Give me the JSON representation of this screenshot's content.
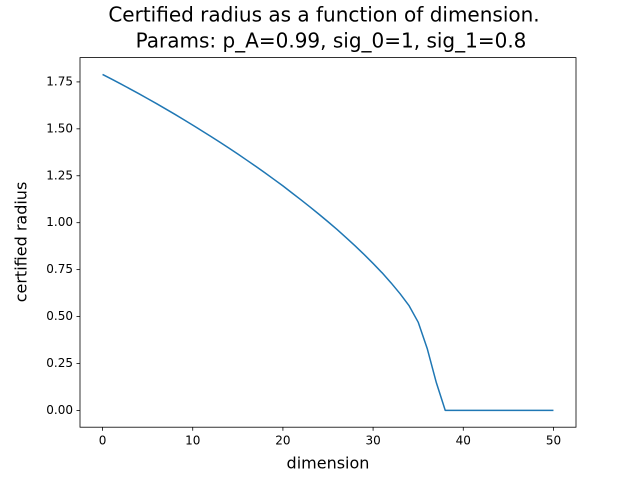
{
  "chart_data": {
    "type": "line",
    "title": "Certified radius as a function of dimension.",
    "subtitle": "Params: p_A=0.99, sig_0=1, sig_1=0.8",
    "xlabel": "dimension",
    "ylabel": "certified radius",
    "x": [
      0,
      1,
      2,
      3,
      4,
      5,
      6,
      7,
      8,
      9,
      10,
      11,
      12,
      13,
      14,
      15,
      16,
      17,
      18,
      19,
      20,
      21,
      22,
      23,
      24,
      25,
      26,
      27,
      28,
      29,
      30,
      31,
      32,
      33,
      34,
      35,
      36,
      37,
      38,
      39,
      40,
      41,
      42,
      43,
      44,
      45,
      46,
      47,
      48,
      49,
      50
    ],
    "series": [
      {
        "color": "#1f77b4",
        "values": [
          1.79,
          1.765,
          1.74,
          1.714,
          1.688,
          1.661,
          1.634,
          1.606,
          1.578,
          1.549,
          1.52,
          1.49,
          1.46,
          1.429,
          1.398,
          1.366,
          1.333,
          1.3,
          1.266,
          1.231,
          1.196,
          1.159,
          1.122,
          1.084,
          1.045,
          1.005,
          0.964,
          0.921,
          0.877,
          0.831,
          0.783,
          0.733,
          0.679,
          0.621,
          0.557,
          0.47,
          0.33,
          0.15,
          0,
          0,
          0,
          0,
          0,
          0,
          0,
          0,
          0,
          0,
          0,
          0,
          0
        ]
      }
    ],
    "xlim": [
      -2.5,
      52.5
    ],
    "xticks": [
      0,
      10,
      20,
      30,
      40,
      50
    ],
    "ylim": [
      -0.0895,
      1.8795
    ],
    "yticks": [
      {
        "value": 0,
        "label": "0.00"
      },
      {
        "value": 0.25,
        "label": "0.25"
      },
      {
        "value": 0.5,
        "label": "0.50"
      },
      {
        "value": 0.75,
        "label": "0.75"
      },
      {
        "value": 1,
        "label": "1.00"
      },
      {
        "value": 1.25,
        "label": "1.25"
      },
      {
        "value": 1.5,
        "label": "1.50"
      },
      {
        "value": 1.75,
        "label": "1.75"
      }
    ],
    "grid": false
  }
}
